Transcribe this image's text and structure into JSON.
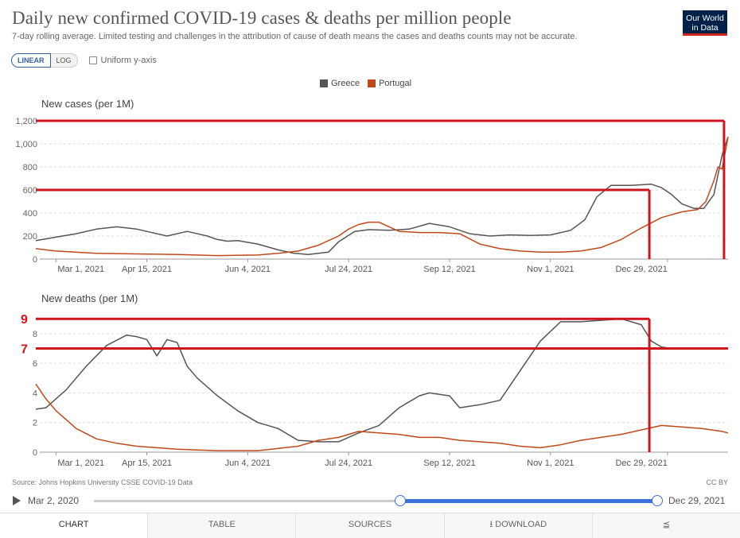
{
  "header": {
    "title": "Daily new confirmed COVID-19 cases & deaths per million people",
    "subtitle": "7-day rolling average. Limited testing and challenges in the attribution of cause of death means the cases and deaths counts may not be accurate.",
    "logo_line1": "Our World",
    "logo_line2": "in Data"
  },
  "controls": {
    "linear": "LINEAR",
    "log": "LOG",
    "uniform": "Uniform y-axis"
  },
  "legend": [
    {
      "name": "Greece",
      "color": "#555555"
    },
    {
      "name": "Portugal",
      "color": "#c0491a"
    }
  ],
  "chart_data": [
    {
      "type": "line",
      "title": "New cases (per 1M)",
      "x_labels": [
        "Mar 1, 2021",
        "Apr 15, 2021",
        "Jun 4, 2021",
        "Jul 24, 2021",
        "Sep 12, 2021",
        "Nov 1, 2021",
        "Dec 29, 2021"
      ],
      "yticks": [
        "0",
        "200",
        "400",
        "600",
        "800",
        "1,000",
        "1,200"
      ],
      "ylim": [
        0,
        1200
      ],
      "xlim_days": [
        -10,
        333
      ],
      "series": [
        {
          "name": "Greece",
          "color": "#555555",
          "x": [
            -10,
            0,
            10,
            20,
            30,
            40,
            45,
            55,
            65,
            75,
            80,
            85,
            90,
            100,
            110,
            118,
            125,
            135,
            140,
            148,
            155,
            165,
            175,
            185,
            195,
            205,
            215,
            225,
            235,
            245,
            255,
            262,
            268,
            275,
            285,
            295,
            300,
            305,
            310,
            316,
            321,
            326,
            330,
            333
          ],
          "y": [
            160,
            190,
            220,
            260,
            280,
            260,
            240,
            200,
            240,
            200,
            170,
            155,
            160,
            130,
            80,
            50,
            40,
            60,
            150,
            240,
            255,
            250,
            260,
            310,
            280,
            220,
            200,
            210,
            205,
            210,
            250,
            340,
            540,
            640,
            640,
            650,
            620,
            560,
            480,
            440,
            440,
            560,
            900,
            1060
          ]
        },
        {
          "name": "Portugal",
          "color": "#c0491a",
          "x": [
            -10,
            0,
            20,
            40,
            60,
            80,
            100,
            110,
            120,
            130,
            140,
            145,
            150,
            155,
            160,
            170,
            180,
            190,
            200,
            210,
            220,
            230,
            240,
            250,
            260,
            270,
            280,
            290,
            300,
            310,
            318,
            322,
            326,
            328,
            330,
            333
          ],
          "y": [
            90,
            70,
            50,
            45,
            40,
            30,
            35,
            50,
            70,
            120,
            200,
            260,
            300,
            320,
            320,
            240,
            230,
            230,
            220,
            130,
            90,
            70,
            60,
            60,
            70,
            100,
            170,
            270,
            360,
            410,
            430,
            500,
            680,
            800,
            780,
            1060
          ]
        }
      ]
    },
    {
      "type": "line",
      "title": "New deaths (per 1M)",
      "x_labels": [
        "Mar 1, 2021",
        "Apr 15, 2021",
        "Jun 4, 2021",
        "Jul 24, 2021",
        "Sep 12, 2021",
        "Nov 1, 2021",
        "Dec 29, 2021"
      ],
      "yticks": [
        "0",
        "2",
        "4",
        "6",
        "8"
      ],
      "ylim": [
        0,
        9.6
      ],
      "xlim_days": [
        -10,
        333
      ],
      "series": [
        {
          "name": "Greece",
          "color": "#555555",
          "x": [
            -10,
            -5,
            5,
            15,
            25,
            35,
            40,
            45,
            50,
            55,
            60,
            65,
            70,
            80,
            90,
            100,
            110,
            120,
            130,
            140,
            150,
            160,
            170,
            180,
            185,
            190,
            195,
            200,
            210,
            220,
            225,
            230,
            240,
            250,
            260,
            270,
            280,
            285,
            290,
            295,
            300,
            305,
            310,
            315,
            320,
            325,
            330,
            333
          ],
          "y": [
            2.9,
            3.0,
            4.2,
            5.8,
            7.2,
            7.9,
            7.8,
            7.6,
            6.5,
            7.6,
            7.4,
            5.8,
            5.0,
            3.8,
            2.8,
            2.0,
            1.6,
            0.8,
            0.7,
            0.7,
            1.3,
            1.8,
            3.0,
            3.8,
            4.0,
            3.9,
            3.8,
            3.0,
            3.2,
            3.5,
            4.5,
            5.5,
            7.5,
            8.8,
            8.8,
            8.9,
            9.0,
            8.8,
            8.6,
            7.5,
            7.1,
            7.0,
            7.0,
            7.0,
            7.0,
            7.0,
            7.0,
            7.0
          ]
        },
        {
          "name": "Portugal",
          "color": "#c0491a",
          "x": [
            -10,
            -5,
            0,
            10,
            20,
            30,
            40,
            50,
            60,
            80,
            100,
            120,
            130,
            140,
            150,
            160,
            170,
            180,
            190,
            200,
            210,
            220,
            230,
            240,
            250,
            260,
            270,
            280,
            290,
            300,
            310,
            320,
            330,
            333
          ],
          "y": [
            4.6,
            3.6,
            2.8,
            1.6,
            0.9,
            0.6,
            0.4,
            0.3,
            0.2,
            0.1,
            0.1,
            0.4,
            0.8,
            1.0,
            1.4,
            1.3,
            1.2,
            1.0,
            1.0,
            0.8,
            0.7,
            0.6,
            0.4,
            0.3,
            0.5,
            0.8,
            1.0,
            1.2,
            1.5,
            1.8,
            1.7,
            1.6,
            1.4,
            1.3
          ]
        }
      ]
    }
  ],
  "annotations": {
    "nine": "9",
    "seven": "7"
  },
  "source": "Source: Johns Hopkins University CSSE COVID-19 Data",
  "license": "CC BY",
  "timeline": {
    "start": "Mar 2, 2020",
    "end": "Dec 29, 2021"
  },
  "tabs": [
    "CHART",
    "TABLE",
    "SOURCES",
    "DOWNLOAD",
    ""
  ]
}
